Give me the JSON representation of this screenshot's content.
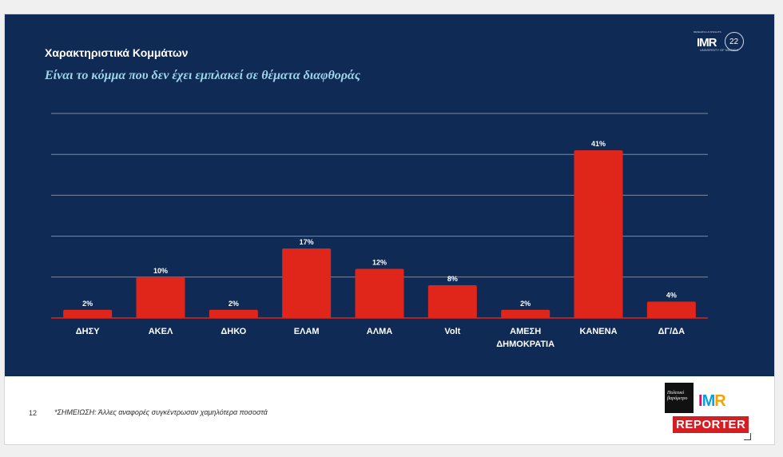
{
  "slide": {
    "title": "Χαρακτηριστικά Κομμάτων",
    "subtitle": "Είναι το κόμμα που δεν έχει εμπλακεί σε θέματα διαφθοράς",
    "page_number": "12",
    "note": "*ΣΗΜΕΙΩΣΗ: Άλλες αναφορές συγκέντρωσαν χαμηλότερα ποσοστά"
  },
  "logo": {
    "imr": "IMR",
    "top_text": "RESEARCH & INSIGHTS",
    "sub_text": "UNIVERSITY OF NICOSIA",
    "years": "22"
  },
  "brand": {
    "black_box_text": "Πολιτικό βαρόμετρο",
    "imr_letters": [
      "I",
      "M",
      "R"
    ],
    "reporter": "REPORTER"
  },
  "colors": {
    "panel_bg": "#0e2a55",
    "bar": "#e0251b",
    "grid": "#7d8aa3"
  },
  "chart_data": {
    "type": "bar",
    "title": "Είναι το κόμμα που δεν έχει εμπλακεί σε θέματα διαφθοράς",
    "categories": [
      [
        "ΔΗΣΥ"
      ],
      [
        "ΑΚΕΛ"
      ],
      [
        "ΔΗΚΟ"
      ],
      [
        "ΕΛΑΜ"
      ],
      [
        "ΑΛΜΑ"
      ],
      [
        "Volt"
      ],
      [
        "ΑΜΕΣΗ",
        "ΔΗΜΟΚΡΑΤΙΑ"
      ],
      [
        "ΚΑΝΕΝΑ"
      ],
      [
        "ΔΓ/ΔΑ"
      ]
    ],
    "values": [
      2,
      10,
      2,
      17,
      12,
      8,
      2,
      41,
      4
    ],
    "labels": [
      "2%",
      "10%",
      "2%",
      "17%",
      "12%",
      "8%",
      "2%",
      "41%",
      "4%"
    ],
    "ylim": [
      0,
      50
    ],
    "grid": true,
    "xlabel": "",
    "ylabel": ""
  }
}
